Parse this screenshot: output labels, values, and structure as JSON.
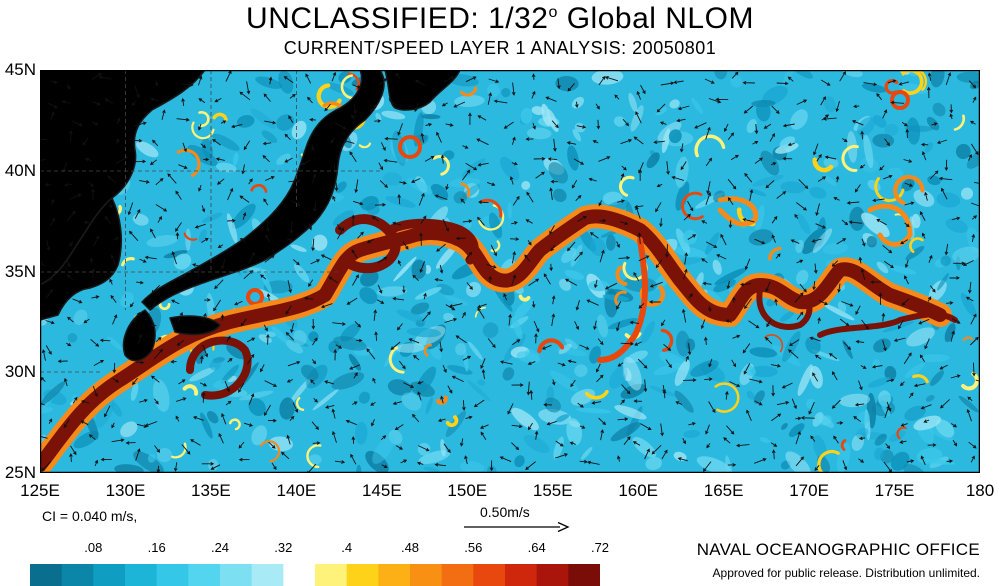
{
  "header": {
    "title_main": "UNCLASSIFIED: 1/32",
    "title_degree": "o",
    "title_tail": " Global NLOM",
    "subtitle": "CURRENT/SPEED LAYER 1 ANALYSIS: 20050801"
  },
  "map": {
    "lat_labels": [
      "45N",
      "40N",
      "35N",
      "30N",
      "25N"
    ],
    "lon_labels": [
      "125E",
      "130E",
      "135E",
      "140E",
      "145E",
      "150E",
      "155E",
      "160E",
      "165E",
      "170E",
      "175E",
      "180"
    ],
    "lon_range": [
      125,
      180
    ],
    "lat_range": [
      25,
      45
    ],
    "colors": {
      "land": "#f9c9a1",
      "ocean_low": "#0b8fb8",
      "ocean_mid": "#3cc8ea",
      "current_fast": "#7a1208",
      "current_mid": "#f58a1a",
      "current_edge": "#ffd21a"
    }
  },
  "legend": {
    "ci_text": "CI = 0.040 m/s,",
    "scale_text": "0.50m/s",
    "colorbar_ticks": [
      ".08",
      ".16",
      ".24",
      ".32",
      ".4",
      ".48",
      ".56",
      ".64",
      ".72"
    ],
    "colorbar_colors": [
      "#0a6f8f",
      "#0c86a8",
      "#0f9dc2",
      "#1cb5d8",
      "#34c7e8",
      "#54d5ef",
      "#7de0f2",
      "#a8eaf5",
      "#ffffff",
      "#fff27a",
      "#ffd21a",
      "#fdb016",
      "#f89014",
      "#f36d12",
      "#e8480e",
      "#cf270b",
      "#a9150a",
      "#7a0d07"
    ]
  },
  "footer": {
    "office": "NAVAL OCEANOGRAPHIC OFFICE",
    "release": "Approved for public release. Distribution unlimited."
  }
}
